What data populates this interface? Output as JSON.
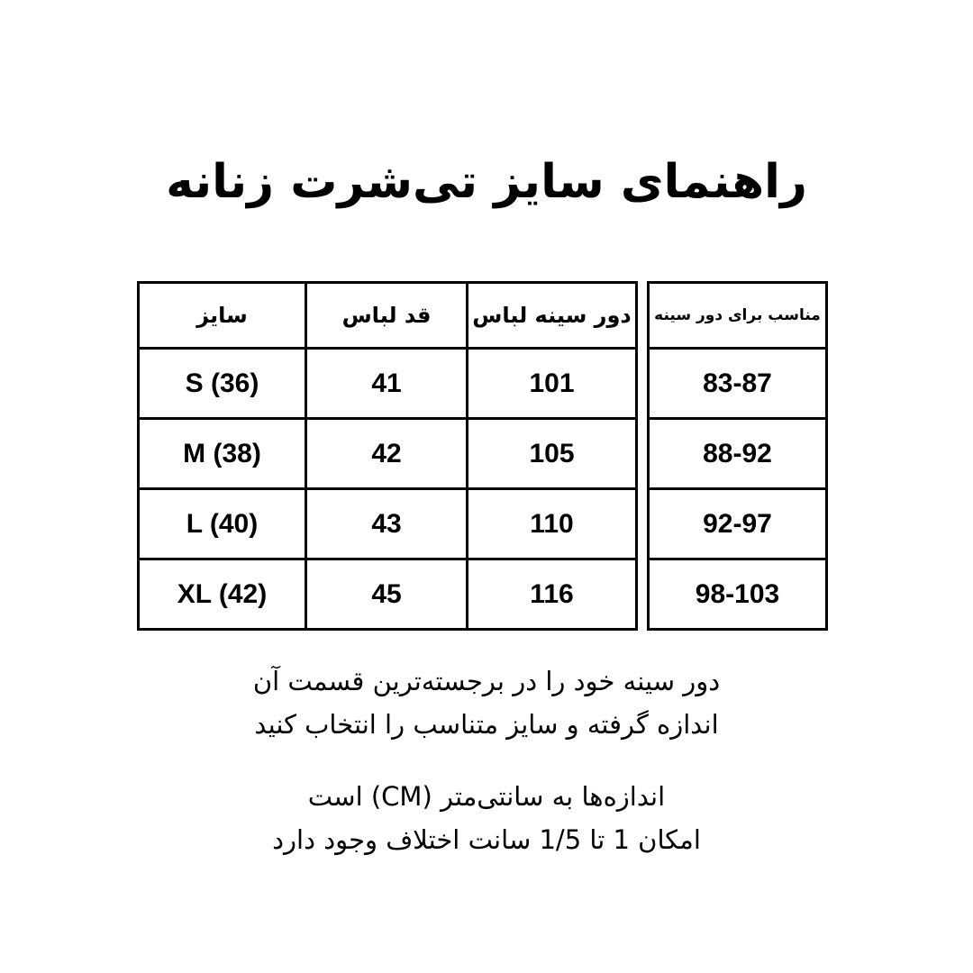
{
  "title": "راهنمای سایز تی‌شرت زنانه",
  "table": {
    "headers": [
      "سایز",
      "قد لباس",
      "دور سینه لباس"
    ],
    "rows": [
      {
        "size": "S (36)",
        "length": "41",
        "chest": "101"
      },
      {
        "size": "M (38)",
        "length": "42",
        "chest": "105"
      },
      {
        "size": "L (40)",
        "length": "43",
        "chest": "110"
      },
      {
        "size": "XL (42)",
        "length": "45",
        "chest": "116"
      }
    ]
  },
  "fit_table": {
    "header": "مناسب برای دور سینه",
    "rows": [
      "83-87",
      "88-92",
      "92-97",
      "98-103"
    ]
  },
  "notes": [
    "دور سینه خود را در برجسته‌ترین قسمت آن",
    "اندازه گرفته و سایز متناسب را انتخاب کنید",
    "اندازه‌ها به سانتی‌متر (CM) است",
    "امکان 1 تا 1/5 سانت اختلاف وجود دارد"
  ]
}
